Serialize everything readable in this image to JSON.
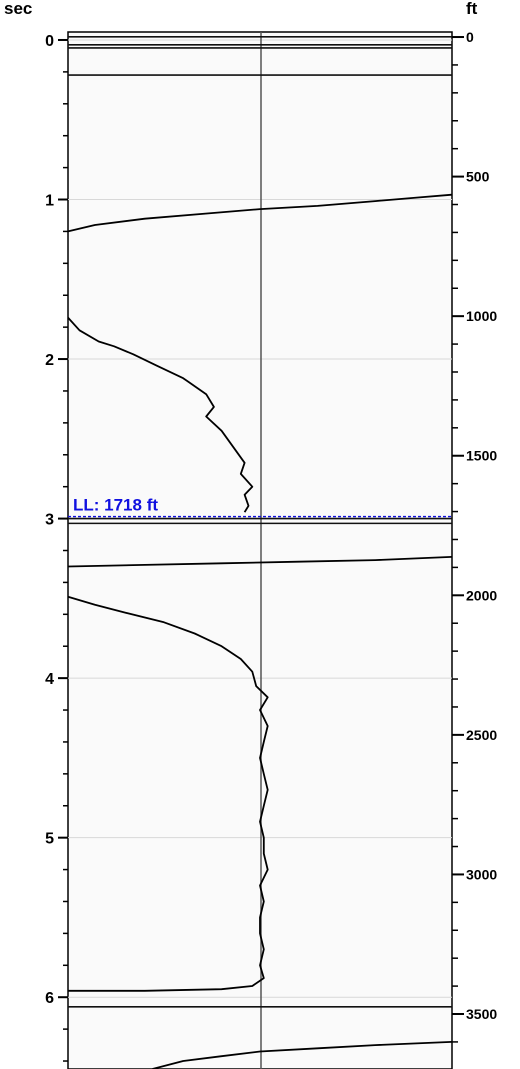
{
  "chart_data": {
    "type": "line",
    "left_axis": {
      "unit": "sec",
      "range": [
        -0.05,
        6.45
      ],
      "major_ticks": [
        0,
        1,
        2,
        3,
        4,
        5,
        6
      ],
      "tick_labels": [
        "0",
        "1",
        "2",
        "3",
        "4",
        "5",
        "6"
      ]
    },
    "right_axis": {
      "unit": "ft",
      "range": [
        -18,
        3697
      ],
      "major_ticks": [
        0,
        500,
        1000,
        1500,
        2000,
        2500,
        3000,
        3500
      ],
      "tick_labels": [
        "0",
        "500",
        "1000",
        "1500",
        "2000",
        "2500",
        "3000",
        "3500"
      ]
    },
    "x_range": [
      0,
      1
    ],
    "grid": true,
    "marker": {
      "label": "LL: 1718 ft",
      "depth_ft": 1718,
      "color": "#1010e0"
    },
    "horizontal_lines_sec": [
      -0.02,
      0.03,
      0.05,
      0.22,
      3.0,
      3.03,
      6.06
    ],
    "series": [
      {
        "points": [
          [
            0,
            1.2
          ],
          [
            0.07,
            1.16
          ],
          [
            0.2,
            1.12
          ],
          [
            0.35,
            1.09
          ],
          [
            0.5,
            1.06
          ],
          [
            0.65,
            1.04
          ],
          [
            0.8,
            1.01
          ],
          [
            0.9,
            0.99
          ],
          [
            1.0,
            0.97
          ]
        ]
      },
      {
        "points": [
          [
            0,
            1.74
          ],
          [
            0.03,
            1.82
          ],
          [
            0.08,
            1.89
          ],
          [
            0.12,
            1.92
          ],
          [
            0.17,
            1.97
          ],
          [
            0.23,
            2.04
          ],
          [
            0.3,
            2.12
          ],
          [
            0.36,
            2.22
          ],
          [
            0.38,
            2.3
          ],
          [
            0.36,
            2.36
          ],
          [
            0.4,
            2.45
          ],
          [
            0.43,
            2.55
          ],
          [
            0.46,
            2.65
          ],
          [
            0.45,
            2.72
          ],
          [
            0.48,
            2.8
          ],
          [
            0.46,
            2.85
          ],
          [
            0.47,
            2.92
          ],
          [
            0.46,
            2.96
          ]
        ]
      },
      {
        "points": [
          [
            0,
            3.3
          ],
          [
            0.2,
            3.29
          ],
          [
            0.4,
            3.28
          ],
          [
            0.6,
            3.27
          ],
          [
            0.8,
            3.26
          ],
          [
            1.0,
            3.24
          ]
        ]
      },
      {
        "points": [
          [
            0,
            3.49
          ],
          [
            0.07,
            3.54
          ],
          [
            0.15,
            3.59
          ],
          [
            0.25,
            3.65
          ],
          [
            0.33,
            3.72
          ],
          [
            0.4,
            3.8
          ],
          [
            0.45,
            3.88
          ],
          [
            0.48,
            3.96
          ],
          [
            0.49,
            4.05
          ],
          [
            0.52,
            4.12
          ],
          [
            0.5,
            4.2
          ],
          [
            0.52,
            4.3
          ],
          [
            0.51,
            4.4
          ],
          [
            0.5,
            4.5
          ],
          [
            0.51,
            4.6
          ],
          [
            0.52,
            4.7
          ],
          [
            0.51,
            4.8
          ],
          [
            0.5,
            4.9
          ],
          [
            0.51,
            5.0
          ],
          [
            0.51,
            5.1
          ],
          [
            0.52,
            5.2
          ],
          [
            0.5,
            5.3
          ],
          [
            0.51,
            5.4
          ],
          [
            0.5,
            5.5
          ],
          [
            0.5,
            5.6
          ],
          [
            0.51,
            5.7
          ],
          [
            0.5,
            5.8
          ],
          [
            0.51,
            5.88
          ],
          [
            0.48,
            5.93
          ],
          [
            0.4,
            5.95
          ],
          [
            0.2,
            5.96
          ],
          [
            0,
            5.96
          ]
        ]
      },
      {
        "points": [
          [
            0.22,
            6.45
          ],
          [
            0.3,
            6.4
          ],
          [
            0.4,
            6.37
          ],
          [
            0.5,
            6.34
          ],
          [
            0.65,
            6.32
          ],
          [
            0.8,
            6.3
          ],
          [
            1.0,
            6.28
          ]
        ]
      }
    ]
  }
}
